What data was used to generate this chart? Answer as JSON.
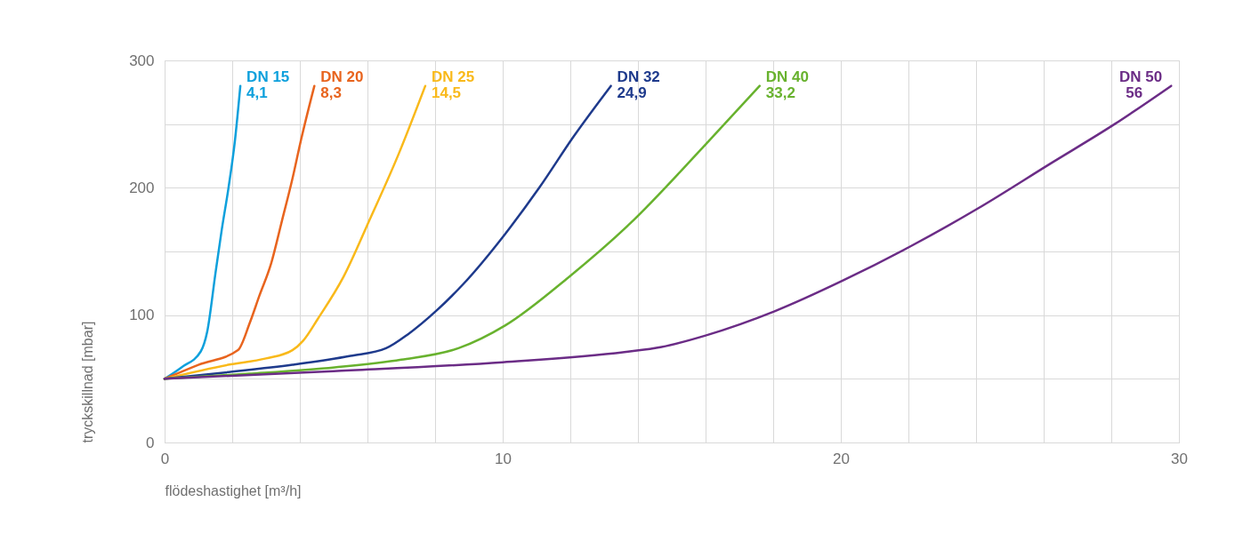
{
  "chart_data": {
    "type": "line",
    "xlabel": "flödeshastighet [m³/h]",
    "ylabel": "tryckskillnad [mbar]",
    "xlim": [
      0,
      30
    ],
    "ylim": [
      0,
      300
    ],
    "xticks": [
      0,
      {
        "value": 2,
        "label": null
      },
      {
        "value": 4,
        "label": null
      },
      {
        "value": 6,
        "label": null
      },
      {
        "value": 8,
        "label": null
      },
      10,
      {
        "value": 12,
        "label": null
      },
      {
        "value": 14,
        "label": null
      },
      {
        "value": 16,
        "label": null
      },
      {
        "value": 18,
        "label": null
      },
      20,
      {
        "value": 22,
        "label": null
      },
      {
        "value": 24,
        "label": null
      },
      {
        "value": 26,
        "label": null
      },
      {
        "value": 28,
        "label": null
      },
      30
    ],
    "yticks": [
      0,
      {
        "value": 50,
        "label": null
      },
      100,
      {
        "value": 150,
        "label": null
      },
      200,
      {
        "value": 250,
        "label": null
      },
      300
    ],
    "grid": true,
    "legend": false,
    "marker": "none",
    "line_style": "solid",
    "series": [
      {
        "name": "DN 15",
        "color": "#0ea0dc",
        "x": [
          0,
          0.5,
          1.07,
          1.26,
          1.51,
          1.69,
          1.89,
          2.08,
          2.24
        ],
        "values": [
          50,
          59,
          71.5,
          87,
          134,
          167,
          200,
          237,
          280
        ]
      },
      {
        "name": "DN 20",
        "color": "#e8641e",
        "x": [
          0,
          1.0,
          2.17,
          2.52,
          2.8,
          3.15,
          3.47,
          3.78,
          4.03,
          4.43
        ],
        "values": [
          50,
          61,
          72.5,
          94,
          115,
          140.5,
          174,
          207,
          237,
          280
        ]
      },
      {
        "name": "DN 25",
        "color": "#f9b91a",
        "x": [
          0,
          1.88,
          3.0,
          3.78,
          4.1,
          4.53,
          5.29,
          6.05,
          6.93,
          7.71
        ],
        "values": [
          50,
          61,
          66,
          72.5,
          80,
          97,
          130,
          174,
          227,
          280
        ]
      },
      {
        "name": "DN 32",
        "color": "#1e3a8c",
        "x": [
          0,
          1.8,
          3.78,
          5.5,
          6.55,
          7.2,
          8.06,
          8.82,
          10.08,
          11.08,
          12.09,
          13.2
        ],
        "values": [
          50,
          55,
          61,
          68,
          74,
          85,
          104,
          124,
          164,
          200,
          240,
          280
        ]
      },
      {
        "name": "DN 40",
        "color": "#68b22e",
        "x": [
          0,
          2.5,
          5.03,
          7,
          8.69,
          10.08,
          11.96,
          13.77,
          16.0,
          17.6
        ],
        "values": [
          50,
          54,
          59,
          65,
          74,
          92,
          130,
          172,
          234,
          280
        ]
      },
      {
        "name": "DN 50",
        "color": "#6b2c86",
        "x": [
          0,
          5,
          10,
          13.6,
          14.7,
          16.0,
          18.04,
          20.05,
          22.06,
          24.07,
          26.2,
          28.1,
          29.77
        ],
        "values": [
          50,
          56,
          63,
          71,
          75,
          84,
          103,
          127,
          154,
          184,
          219,
          250,
          280
        ]
      }
    ],
    "annotations": [
      {
        "text": "4,1",
        "x": 2.24,
        "y": 280
      },
      {
        "text": "8,3",
        "x": 4.43,
        "y": 280
      },
      {
        "text": "14,5",
        "x": 7.71,
        "y": 280
      },
      {
        "text": "24,9",
        "x": 13.2,
        "y": 280
      },
      {
        "text": "33,2",
        "x": 17.6,
        "y": 280
      },
      {
        "text": "56",
        "x": 29.77,
        "y": 280
      }
    ]
  }
}
